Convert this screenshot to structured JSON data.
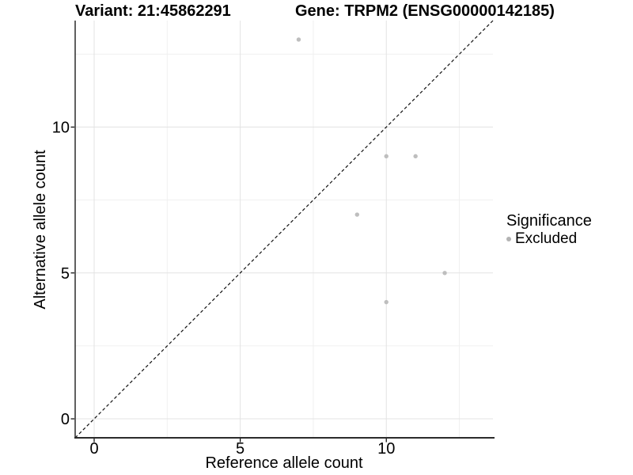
{
  "chart_data": {
    "type": "scatter",
    "title_left": "Variant: 21:45862291",
    "title_right": "Gene: TRPM2 (ENSG00000142185)",
    "xlabel": "Reference allele count",
    "ylabel": "Alternative allele count",
    "xlim": [
      -0.65,
      13.65
    ],
    "ylim": [
      -0.65,
      13.65
    ],
    "x_ticks": [
      0,
      5,
      10
    ],
    "y_ticks": [
      0,
      5,
      10
    ],
    "minor_gridlines": [
      2.5,
      7.5,
      12.5
    ],
    "grid": true,
    "identity_line": {
      "style": "dashed",
      "color": "#111111",
      "from": [
        -0.65,
        -0.65
      ],
      "to": [
        13.65,
        13.65
      ]
    },
    "series": [
      {
        "name": "Excluded",
        "color": "#bebebe",
        "points": [
          [
            7,
            13
          ],
          [
            10,
            9
          ],
          [
            11,
            9
          ],
          [
            9,
            7
          ],
          [
            12,
            5
          ],
          [
            10,
            4
          ]
        ]
      }
    ],
    "legend": {
      "title": "Significance",
      "position": "right",
      "items": [
        {
          "label": "Excluded",
          "color": "#b3b3b3"
        }
      ]
    },
    "colors": {
      "background": "#ffffff",
      "major_grid": "#e3e3e3",
      "minor_grid": "#f0f0f0",
      "axis_line": "#2b2b2b",
      "tick_text": "#000000"
    }
  }
}
